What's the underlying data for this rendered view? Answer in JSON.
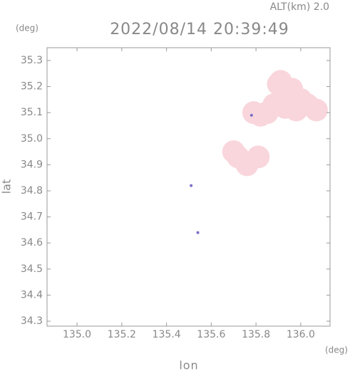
{
  "chart_data": {
    "type": "scatter",
    "title": "2022/08/14 20:39:49",
    "subtitle": "ALT(km) 2.0",
    "x_label": "lon",
    "y_label": "lat",
    "x_unit": "(deg)",
    "y_unit": "(deg)",
    "xlim": [
      134.866,
      136.131
    ],
    "ylim": [
      34.281,
      35.349
    ],
    "xticks": [
      {
        "value": 135,
        "label": "135.0"
      },
      135.2,
      135.4,
      135.6,
      135.8,
      {
        "value": 136,
        "label": "136.0"
      }
    ],
    "yticks": [
      34.3,
      34.4,
      34.5,
      34.6,
      34.7,
      34.8,
      34.9,
      {
        "value": 35,
        "label": "35.0"
      },
      35.1,
      35.2,
      35.3
    ],
    "series": [
      {
        "color": "#f9d6dc",
        "x": [
          135.92,
          135.9,
          135.95,
          135.88,
          136.0,
          136.03,
          135.85,
          135.93,
          135.98,
          135.82,
          136.07,
          135.79,
          135.91,
          135.96,
          135.72,
          135.76,
          135.81,
          135.7
        ],
        "values": [
          35.18,
          35.21,
          35.16,
          35.13,
          35.15,
          35.13,
          35.1,
          35.12,
          35.11,
          35.09,
          35.11,
          35.1,
          35.22,
          35.19,
          34.93,
          34.9,
          34.93,
          34.95
        ]
      },
      {
        "color": "#7a6fc8",
        "x": [
          135.51,
          135.54,
          135.78
        ],
        "values": [
          34.82,
          34.64,
          35.09
        ]
      }
    ]
  }
}
